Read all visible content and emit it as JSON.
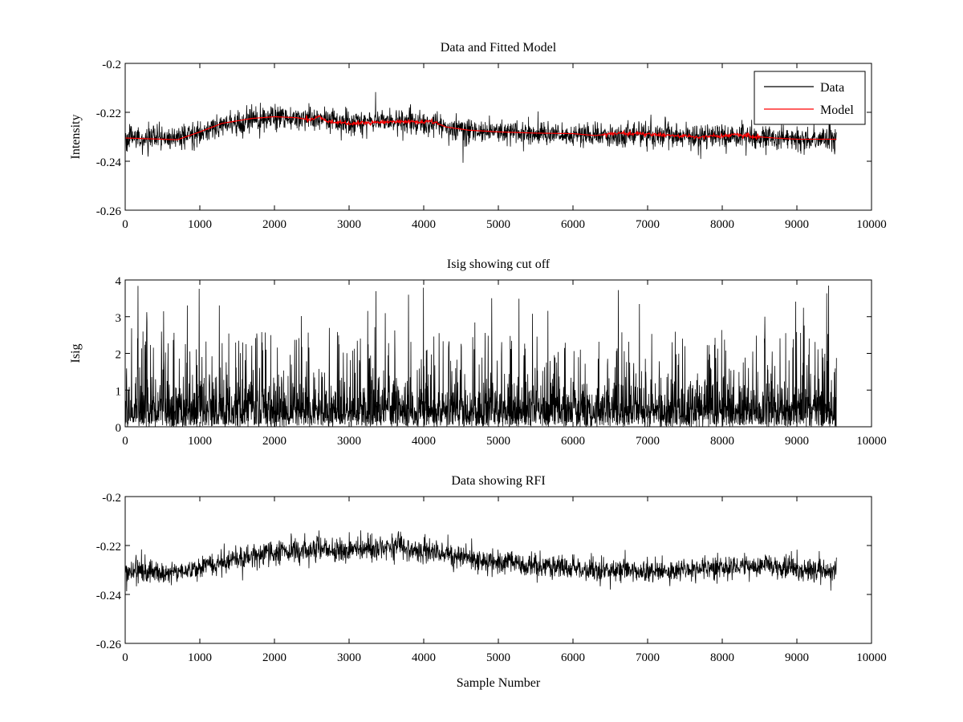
{
  "chart_data": [
    {
      "type": "line",
      "title": "Data and Fitted Model",
      "xlabel": "",
      "ylabel": "Intensity",
      "xlim": [
        0,
        10000
      ],
      "ylim": [
        -0.26,
        -0.2
      ],
      "xticks": [
        0,
        1000,
        2000,
        3000,
        4000,
        5000,
        6000,
        7000,
        8000,
        9000,
        10000
      ],
      "yticks": [
        -0.26,
        -0.24,
        -0.22,
        -0.2
      ],
      "ytick_labels": [
        "-0.26",
        "-0.24",
        "-0.22",
        "-0.2"
      ],
      "legend": {
        "placement": "top-right",
        "entries": [
          "Data",
          "Model"
        ]
      },
      "series": [
        {
          "name": "Data",
          "color": "#000000",
          "kind": "noisy",
          "n_points": 9530,
          "noise_amplitude": 0.0045,
          "trend_x": [
            0,
            700,
            1300,
            2000,
            2500,
            3000,
            3500,
            4000,
            4500,
            5000,
            5500,
            6000,
            6500,
            7000,
            7500,
            8000,
            8500,
            9000,
            9530
          ],
          "trend_y": [
            -0.2305,
            -0.231,
            -0.2255,
            -0.222,
            -0.2225,
            -0.2235,
            -0.2235,
            -0.2245,
            -0.2265,
            -0.228,
            -0.2285,
            -0.229,
            -0.2295,
            -0.229,
            -0.2295,
            -0.2295,
            -0.2305,
            -0.231,
            -0.231
          ]
        },
        {
          "name": "Model",
          "color": "#ff0000",
          "kind": "line",
          "x": [
            0,
            300,
            700,
            1000,
            1300,
            1700,
            2000,
            2300,
            2500,
            2600,
            2700,
            3000,
            3300,
            3600,
            4000,
            4100,
            4300,
            4600,
            5000,
            5500,
            6000,
            6300,
            6600,
            6900,
            7300,
            7700,
            8000,
            8200,
            8400,
            8700,
            9000,
            9300,
            9530
          ],
          "y": [
            -0.2305,
            -0.2308,
            -0.2312,
            -0.228,
            -0.2245,
            -0.2225,
            -0.2218,
            -0.2222,
            -0.2232,
            -0.2215,
            -0.2238,
            -0.2245,
            -0.2243,
            -0.2238,
            -0.224,
            -0.2235,
            -0.226,
            -0.2273,
            -0.228,
            -0.2285,
            -0.2287,
            -0.2295,
            -0.2285,
            -0.2288,
            -0.2295,
            -0.23,
            -0.2298,
            -0.229,
            -0.2298,
            -0.2305,
            -0.231,
            -0.231,
            -0.231
          ]
        }
      ]
    },
    {
      "type": "line",
      "title": "Isig showing cut off",
      "xlabel": "",
      "ylabel": "Isig",
      "xlim": [
        0,
        10000
      ],
      "ylim": [
        0,
        4
      ],
      "xticks": [
        0,
        1000,
        2000,
        3000,
        4000,
        5000,
        6000,
        7000,
        8000,
        9000,
        10000
      ],
      "yticks": [
        0,
        1,
        2,
        3,
        4
      ],
      "ytick_labels": [
        "0",
        "1",
        "2",
        "3",
        "4"
      ],
      "series": [
        {
          "name": "Isig",
          "color": "#000000",
          "kind": "spiky",
          "n_points": 9530,
          "typical_max": 1.6,
          "peak_max": 3.9
        }
      ]
    },
    {
      "type": "line",
      "title": "Data showing RFI",
      "xlabel": "Sample Number",
      "ylabel": "",
      "xlim": [
        0,
        10000
      ],
      "ylim": [
        -0.26,
        -0.2
      ],
      "xticks": [
        0,
        1000,
        2000,
        3000,
        4000,
        5000,
        6000,
        7000,
        8000,
        9000,
        10000
      ],
      "yticks": [
        -0.26,
        -0.24,
        -0.22,
        -0.2
      ],
      "ytick_labels": [
        "-0.26",
        "-0.24",
        "-0.22",
        "-0.2"
      ],
      "series": [
        {
          "name": "Data",
          "color": "#000000",
          "kind": "noisy",
          "n_points": 9530,
          "noise_amplitude": 0.0045,
          "trend_x": [
            0,
            700,
            1300,
            2000,
            2500,
            3000,
            3500,
            4000,
            4500,
            5000,
            5500,
            6000,
            6500,
            7000,
            7500,
            8000,
            8500,
            9000,
            9530
          ],
          "trend_y": [
            -0.2305,
            -0.231,
            -0.2265,
            -0.2225,
            -0.222,
            -0.222,
            -0.2205,
            -0.222,
            -0.2245,
            -0.227,
            -0.228,
            -0.2295,
            -0.2305,
            -0.2305,
            -0.23,
            -0.229,
            -0.228,
            -0.2295,
            -0.2305
          ]
        }
      ]
    }
  ]
}
